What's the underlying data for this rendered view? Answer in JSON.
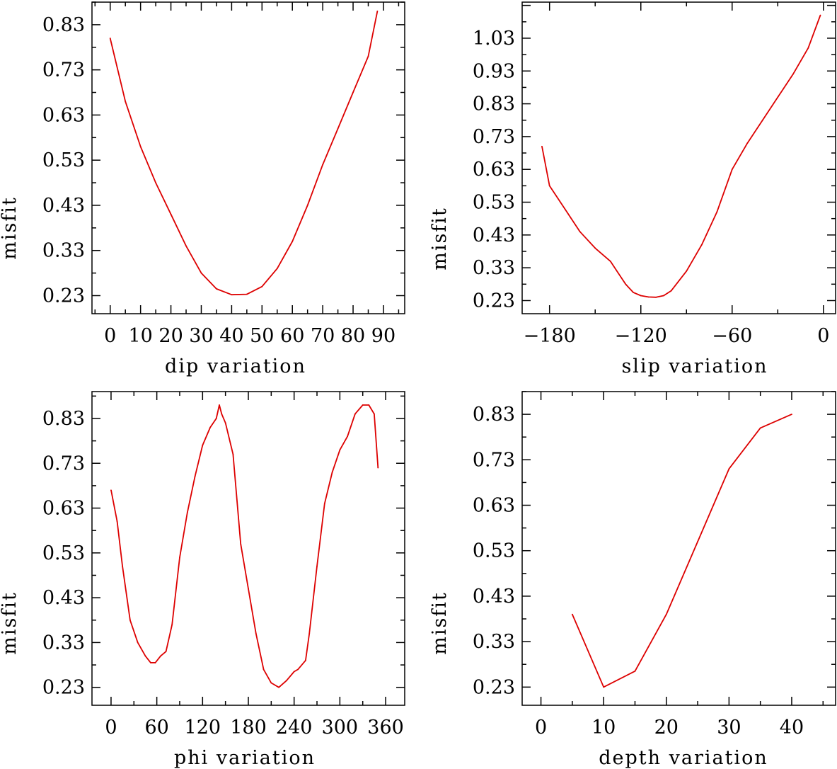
{
  "figure": {
    "curve_color": "#dd0000",
    "frame_color": "#000000"
  },
  "chart_data": [
    {
      "type": "line",
      "panel": "top-left",
      "title": "",
      "xlabel": "dip variation",
      "ylabel": "misfit",
      "xlim": [
        -6,
        97
      ],
      "ylim": [
        0.19,
        0.88
      ],
      "xticks": [
        0,
        10,
        20,
        30,
        40,
        50,
        60,
        70,
        80,
        90
      ],
      "xticklabels": [
        "0",
        "10",
        "20",
        "30",
        "40",
        "50",
        "60",
        "70",
        "80",
        "90"
      ],
      "yticks": [
        0.23,
        0.33,
        0.43,
        0.53,
        0.63,
        0.73,
        0.83
      ],
      "yticklabels": [
        "0.23",
        "0.33",
        "0.43",
        "0.53",
        "0.63",
        "0.73",
        "0.83"
      ],
      "series": [
        {
          "name": "misfit",
          "x": [
            0,
            5,
            10,
            15,
            20,
            25,
            30,
            35,
            40,
            45,
            50,
            55,
            60,
            65,
            70,
            75,
            80,
            85,
            88
          ],
          "y": [
            0.8,
            0.66,
            0.56,
            0.48,
            0.41,
            0.34,
            0.28,
            0.245,
            0.232,
            0.233,
            0.25,
            0.29,
            0.35,
            0.43,
            0.52,
            0.6,
            0.68,
            0.76,
            0.86
          ]
        }
      ]
    },
    {
      "type": "line",
      "panel": "top-right",
      "title": "",
      "xlabel": "slip variation",
      "ylabel": "misfit",
      "xlim": [
        -198,
        8
      ],
      "ylim": [
        0.19,
        1.14
      ],
      "xticks": [
        -180,
        -120,
        -60,
        0
      ],
      "xticklabels": [
        "−180",
        "−120",
        "−60",
        "0"
      ],
      "yticks": [
        0.23,
        0.33,
        0.43,
        0.53,
        0.63,
        0.73,
        0.83,
        0.93,
        1.03
      ],
      "yticklabels": [
        "0.23",
        "0.33",
        "0.43",
        "0.53",
        "0.63",
        "0.73",
        "0.83",
        "0.93",
        "1.03"
      ],
      "series": [
        {
          "name": "misfit",
          "x": [
            -185,
            -180,
            -170,
            -160,
            -150,
            -140,
            -130,
            -125,
            -120,
            -115,
            -110,
            -105,
            -100,
            -90,
            -80,
            -70,
            -60,
            -50,
            -40,
            -30,
            -20,
            -10,
            -2
          ],
          "y": [
            0.7,
            0.58,
            0.51,
            0.44,
            0.39,
            0.35,
            0.28,
            0.255,
            0.245,
            0.241,
            0.24,
            0.245,
            0.26,
            0.32,
            0.4,
            0.5,
            0.63,
            0.71,
            0.78,
            0.85,
            0.92,
            1.0,
            1.1
          ]
        }
      ]
    },
    {
      "type": "line",
      "panel": "bottom-left",
      "title": "",
      "xlabel": "phi variation",
      "ylabel": "misfit",
      "xlim": [
        -25,
        385
      ],
      "ylim": [
        0.19,
        0.89
      ],
      "xticks": [
        0,
        60,
        120,
        180,
        240,
        300,
        360
      ],
      "xticklabels": [
        "0",
        "60",
        "120",
        "180",
        "240",
        "300",
        "360"
      ],
      "yticks": [
        0.23,
        0.33,
        0.43,
        0.53,
        0.63,
        0.73,
        0.83
      ],
      "yticklabels": [
        "0.23",
        "0.33",
        "0.43",
        "0.53",
        "0.63",
        "0.73",
        "0.83"
      ],
      "series": [
        {
          "name": "misfit",
          "x": [
            0,
            8,
            15,
            25,
            35,
            45,
            52,
            58,
            65,
            72,
            80,
            90,
            100,
            110,
            120,
            130,
            138,
            142,
            145,
            150,
            160,
            170,
            180,
            190,
            200,
            210,
            220,
            230,
            240,
            245,
            255,
            260,
            270,
            280,
            290,
            300,
            310,
            320,
            330,
            338,
            345,
            350
          ],
          "y": [
            0.67,
            0.6,
            0.5,
            0.38,
            0.33,
            0.3,
            0.285,
            0.285,
            0.3,
            0.31,
            0.37,
            0.52,
            0.62,
            0.7,
            0.77,
            0.81,
            0.83,
            0.86,
            0.84,
            0.82,
            0.75,
            0.55,
            0.45,
            0.35,
            0.27,
            0.24,
            0.23,
            0.245,
            0.265,
            0.27,
            0.29,
            0.35,
            0.5,
            0.64,
            0.71,
            0.76,
            0.79,
            0.84,
            0.86,
            0.86,
            0.84,
            0.72
          ]
        }
      ]
    },
    {
      "type": "line",
      "panel": "bottom-right",
      "title": "",
      "xlabel": "depth variation",
      "ylabel": "misfit",
      "xlim": [
        -3,
        47
      ],
      "ylim": [
        0.19,
        0.88
      ],
      "xticks": [
        0,
        10,
        20,
        30,
        40
      ],
      "xticklabels": [
        "0",
        "10",
        "20",
        "30",
        "40"
      ],
      "yticks": [
        0.23,
        0.33,
        0.43,
        0.53,
        0.63,
        0.73,
        0.83
      ],
      "yticklabels": [
        "0.23",
        "0.33",
        "0.43",
        "0.53",
        "0.63",
        "0.73",
        "0.83"
      ],
      "series": [
        {
          "name": "misfit",
          "x": [
            5,
            10,
            15,
            20,
            25,
            30,
            35,
            40
          ],
          "y": [
            0.39,
            0.23,
            0.265,
            0.39,
            0.55,
            0.71,
            0.8,
            0.83
          ]
        }
      ]
    }
  ]
}
